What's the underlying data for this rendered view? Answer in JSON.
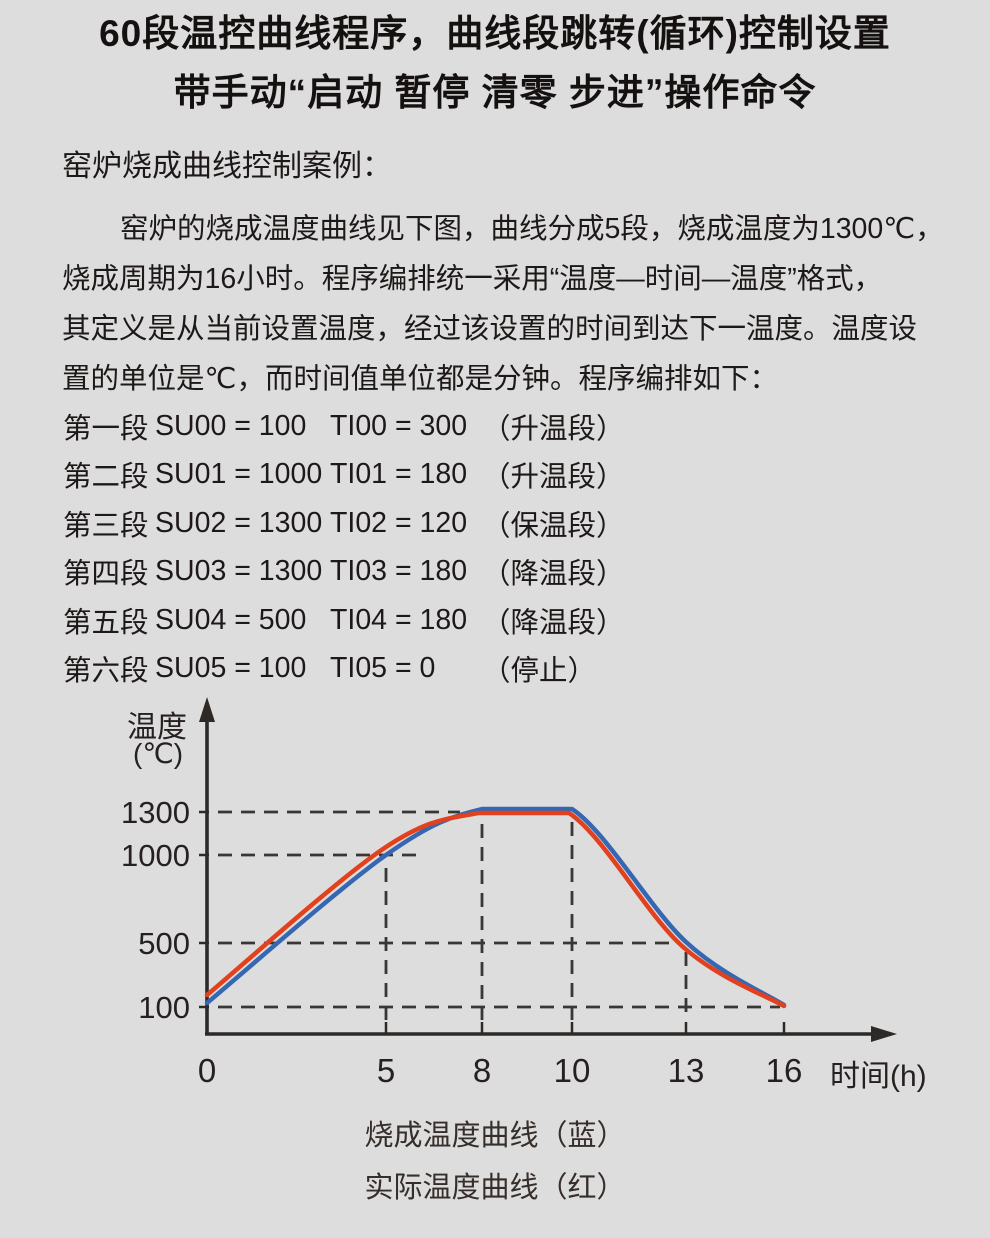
{
  "page": {
    "background": "#dedddd"
  },
  "title": {
    "line1": "60段温控曲线程序，曲线段跳转(循环)控制设置",
    "line2": "带手动“启动 暂停 清零 步进”操作命令"
  },
  "case_heading": "窑炉烧成曲线控制案例：",
  "paragraph_lines": [
    "窑炉的烧成温度曲线见下图，曲线分成5段，烧成温度为1300℃，",
    "烧成周期为16小时。程序编排统一采用“温度—时间—温度”格式，",
    "其定义是从当前设置温度，经过该设置的时间到达下一温度。温度设",
    "置的单位是℃，而时间值单位都是分钟。程序编排如下："
  ],
  "program": {
    "rows": [
      {
        "seg": "第一段",
        "su": "SU00 = 100",
        "ti": "TI00 = 300",
        "note": "（升温段）"
      },
      {
        "seg": "第二段",
        "su": "SU01 = 1000",
        "ti": "TI01 = 180",
        "note": "（升温段）"
      },
      {
        "seg": "第三段",
        "su": "SU02 = 1300",
        "ti": "TI02 = 120",
        "note": "（保温段）"
      },
      {
        "seg": "第四段",
        "su": "SU03 = 1300",
        "ti": "TI03 = 180",
        "note": "（降温段）"
      },
      {
        "seg": "第五段",
        "su": "SU04 = 500",
        "ti": "TI04 = 180",
        "note": "（降温段）"
      },
      {
        "seg": "第六段",
        "su": "SU05 = 100",
        "ti": "TI05 = 0",
        "note": "（停止）"
      }
    ]
  },
  "chart_data": {
    "type": "line",
    "xlabel": "时间(h)",
    "ylabel": "温度(℃)",
    "ylabel_lines": [
      "温度",
      "(℃)"
    ],
    "x_ticks": [
      0,
      5,
      8,
      10,
      13,
      16
    ],
    "y_ticks": [
      1300,
      1000,
      500,
      100
    ],
    "x": [
      0,
      5,
      8,
      10,
      13,
      16
    ],
    "series": [
      {
        "name": "烧成温度曲线（蓝）",
        "color": "#3567b2",
        "values": [
          100,
          1000,
          1300,
          1300,
          500,
          100
        ]
      },
      {
        "name": "实际温度曲线（红）",
        "color": "#e2411e",
        "values": [
          130,
          1000,
          1300,
          1300,
          500,
          100
        ]
      }
    ],
    "xlim": [
      0,
      17.5
    ],
    "ylim": [
      0,
      1500
    ],
    "grid": "dashed reference lines at tick values",
    "legend_position": "below-chart"
  },
  "legend": {
    "blue_label": "烧成温度曲线（蓝）",
    "red_label": "实际温度曲线（红）"
  }
}
